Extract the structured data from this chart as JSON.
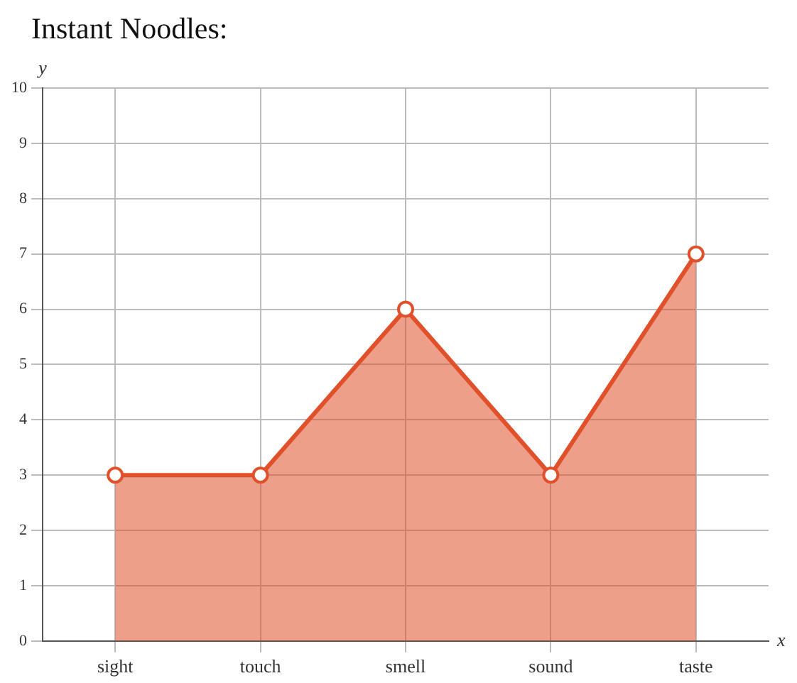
{
  "chart_data": {
    "type": "area",
    "title": "Instant Noodles:",
    "xlabel": "x",
    "ylabel": "y",
    "categories": [
      "sight",
      "touch",
      "smell",
      "sound",
      "taste"
    ],
    "series": [
      {
        "color": "#e0502a",
        "values": [
          3,
          3,
          6,
          3,
          7
        ]
      }
    ],
    "ylim": [
      0,
      10
    ],
    "yticks": [
      0,
      1,
      2,
      3,
      4,
      5,
      6,
      7,
      8,
      9,
      10
    ],
    "grid": true,
    "marker": "circle",
    "legend": false
  }
}
